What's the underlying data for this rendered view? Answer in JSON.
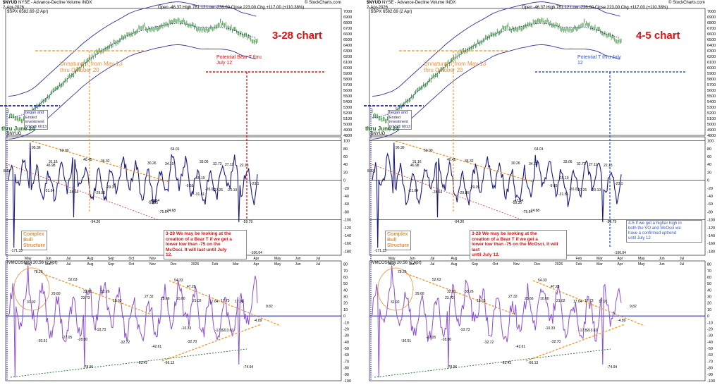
{
  "colors": {
    "vo_line": "#1a1a80",
    "osc_line": "#8c4fd0",
    "bands": "#33339a",
    "price": "#2e8b2e",
    "orange_trend": "#f29422",
    "red_trend": "#e03030",
    "green_trend": "#2e7d32",
    "blue_zero": "#1f1fb0",
    "annotation_red": "#dd1111",
    "annotation_blue": "#3355cc",
    "annotation_orange": "#e8903a"
  },
  "charts": [
    {
      "header": {
        "symbol": "$NYUD",
        "exchange": "NYSE - Advance-Decline Volume",
        "index_tag": "INDX",
        "date": "2-Apr-2026",
        "quote": "Open -46.37  High 781.12  Low -236.00  Close 223.00  Chg +117.00 (+110.38%)",
        "credit": "© StockCharts.com",
        "overlay_label": "$SPX 6582.69 (2 Apr)",
        "vol_label": "$NYUD",
        "osc_label": "!VMCOSNYA 20.56 (2 Apr)"
      },
      "title_annotation": "3-28 chart",
      "left_note_unnatural": "Unnatural T from May 13\nthru October 20",
      "potential_note": "Potential Bear T thru\nJuly 12",
      "began_note": "began and\nEnded\ninvestment\n6/13@ 6013",
      "thru_june": "thru June 24",
      "complex_bull": "Complex\nBull\nStructure",
      "bear_box": "3-28 We may be looking at the\ncreation of a Bear T if we get a\nlower low than -75 on the\nMcOsci. It will last until July\n12.",
      "right_box": "",
      "month_labels": [
        "May",
        "Jun",
        "Jul",
        "Aug",
        "Sep",
        "Oct",
        "Nov",
        "Dec",
        "2026",
        "Feb",
        "Mar",
        "Apr",
        "May",
        "Jun",
        "Jul"
      ],
      "month_labels_osc": [
        "May",
        "Jun",
        "Jul",
        "Aug",
        "Sep",
        "Oct",
        "Nov",
        "Dec",
        "2026",
        "Feb",
        "Mar",
        "Apr",
        "May",
        "Jun",
        "Jul"
      ]
    },
    {
      "header": {
        "symbol": "$NYUD",
        "exchange": "NYSE - Advance-Decline Volume",
        "index_tag": "INDX",
        "date": "2-Apr-2026",
        "quote": "Open -46.37  High 781.12  Low -236.00  Close 223.00  Chg +117.00 (+110.38%)",
        "credit": "© StockCharts.com",
        "overlay_label": "$SPX 6582.69 (2 Apr)",
        "vol_label": "$NYUD",
        "osc_label": "!VMCOSNYA 20.56 (2 Apr)"
      },
      "title_annotation": "4-5 chart",
      "left_note_unnatural": "Unnatural T from May 13\nthru October 20",
      "potential_note": "Potential T thru July\n12",
      "began_note": "began and\nEnded\ninvestment\n6/13@ 6013",
      "thru_june": "thru June 24",
      "complex_bull": "Complex\nBull\nStructure",
      "bear_box": "3-28 We may be looking at the\ncreation of a Bear T if we get a\nlower low than -75 on the McOsci. It will last\nuntil July 12.",
      "right_box": "4-5 If we get a higher high in\nboth the VO and McOsci we\nhave a confirmed uptrend\nuntil July 12",
      "month_labels": [
        "May",
        "Jun",
        "Jul",
        "Aug",
        "Sep",
        "Oct",
        "Nov",
        "Dec",
        "2026",
        "Feb",
        "Mar",
        "Apr",
        "May",
        "Jun",
        "Jul"
      ],
      "month_labels_osc": [
        "May",
        "Jun",
        "Jul",
        "Aug",
        "Sep",
        "Oct",
        "Nov",
        "Dec",
        "2026",
        "Feb",
        "Mar",
        "Apr",
        "May",
        "Jun",
        "Jul"
      ]
    }
  ],
  "chart_data": [
    {
      "type": "line",
      "title": "$SPX 6582.69 (2 Apr)",
      "y_axis_ticks": [
        7000,
        6900,
        6800,
        6700,
        6600,
        6500,
        6400,
        6300,
        6200,
        6100,
        6000,
        5900,
        5800,
        5700,
        5600,
        5500,
        5400,
        5300,
        5200,
        5100,
        5000,
        4900,
        4800
      ],
      "ylim": [
        4800,
        7050
      ]
    },
    {
      "type": "line",
      "title": "$NYUD",
      "y_axis_ticks": [
        100,
        80,
        60,
        40,
        20,
        0,
        -20,
        -40,
        -60,
        -80,
        -100,
        -120,
        -140,
        -160,
        -180
      ],
      "ylim": [
        -190,
        110
      ],
      "point_labels": [
        "95.36",
        "62.00",
        "46.98",
        "31.16",
        "40.45",
        "36.32",
        "30.26",
        "34.10",
        "64.01",
        "33.06",
        "32.73",
        "27.11",
        "22.13",
        "15.19",
        "-21.64",
        "-28.64",
        "-29.86",
        "-29.35",
        "-47.64",
        "-59.35",
        "-75.64",
        "-74.68",
        "-31.51",
        "-27.26",
        "-20.01",
        "-20.10",
        "-9.65",
        "-23.1",
        "-59.79",
        "-94.26",
        "-106.04",
        "-171.33",
        "8.43"
      ]
    },
    {
      "type": "line",
      "title": "!VMCOSNYA 20.56 (2 Apr)",
      "y_axis_ticks": [
        80,
        70,
        60,
        50,
        40,
        30,
        20,
        10,
        0,
        -10,
        -20,
        -30,
        -40,
        -50,
        -60,
        -70,
        -80,
        -90,
        -100
      ],
      "ylim": [
        -100,
        85
      ],
      "point_labels": [
        "78.26",
        "52.63",
        "54.33",
        "47.28",
        "32.61",
        "29.60",
        "33.26",
        "31.92",
        "23.73",
        "19.63",
        "27.32",
        "23.66",
        "17.91",
        "17.73",
        "17.64",
        "21.02",
        "10.00",
        "9.82",
        "-10.73",
        "-30.51",
        "-27.05",
        "-28.80",
        "-32.72",
        "-42.61",
        "-32.70",
        "-17.82",
        "-10.33",
        "-13.63",
        "-78.96",
        "-63.42",
        "-66.13",
        "-74.94",
        "-4.89"
      ]
    }
  ]
}
